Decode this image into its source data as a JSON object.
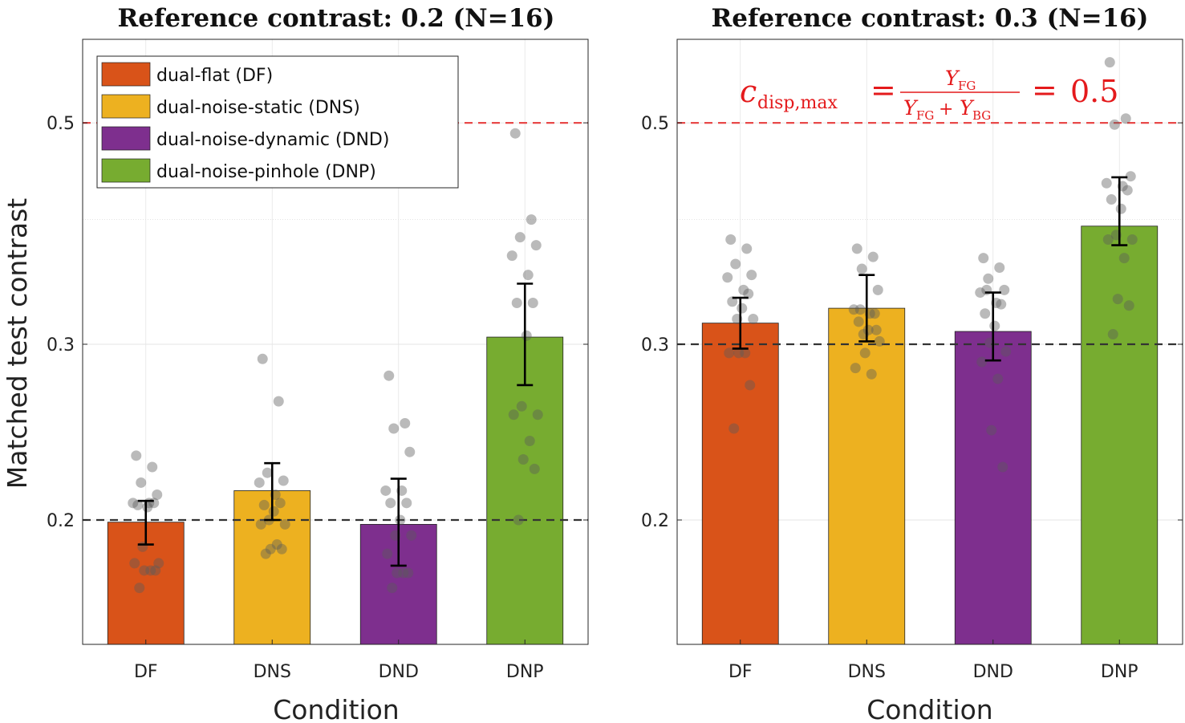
{
  "chart_data": [
    {
      "type": "bar",
      "title": "Reference contrast: 0.2 (N=16)",
      "xlabel": "Condition",
      "ylabel": "Matched test contrast",
      "yscale": "log",
      "ylim": [
        0.15,
        0.62
      ],
      "yticks": [
        "0.2",
        "0.3",
        "0.5"
      ],
      "grid": true,
      "categories": [
        "DF",
        "DNS",
        "DND",
        "DNP"
      ],
      "colors": [
        "#d95319",
        "#edb120",
        "#7e2f8e",
        "#77ac30"
      ],
      "values": [
        0.199,
        0.214,
        0.198,
        0.305
      ],
      "error": [
        [
          0.189,
          0.209
        ],
        [
          0.2,
          0.228
        ],
        [
          0.18,
          0.22
        ],
        [
          0.273,
          0.345
        ]
      ],
      "reference_lines": [
        {
          "y": 0.2,
          "style": "dashed",
          "color": "#333333"
        },
        {
          "y": 0.5,
          "style": "dashed",
          "color": "#e84a4a"
        }
      ],
      "legend": {
        "position": "top-left",
        "entries": [
          "dual-flat (DF)",
          "dual-noise-static (DNS)",
          "dual-noise-dynamic (DND)",
          "dual-noise-pinhole (DNP)"
        ]
      },
      "points": [
        [
          0.232,
          0.226,
          0.218,
          0.212,
          0.208,
          0.208,
          0.208,
          0.207,
          0.206,
          0.188,
          0.181,
          0.181,
          0.178,
          0.178,
          0.178,
          0.171
        ],
        [
          0.29,
          0.263,
          0.223,
          0.219,
          0.218,
          0.212,
          0.208,
          0.207,
          0.204,
          0.2,
          0.198,
          0.198,
          0.189,
          0.187,
          0.187,
          0.185
        ],
        [
          0.279,
          0.25,
          0.247,
          0.234,
          0.214,
          0.214,
          0.208,
          0.208,
          0.2,
          0.193,
          0.193,
          0.185,
          0.177,
          0.177,
          0.177,
          0.171
        ],
        [
          0.488,
          0.4,
          0.384,
          0.377,
          0.368,
          0.352,
          0.33,
          0.33,
          0.306,
          0.26,
          0.255,
          0.255,
          0.24,
          0.23,
          0.225,
          0.2
        ]
      ]
    },
    {
      "type": "bar",
      "title": "Reference contrast: 0.3 (N=16)",
      "xlabel": "Condition",
      "yscale": "log",
      "ylim": [
        0.15,
        0.62
      ],
      "yticks": [
        "0.2",
        "0.3",
        "0.5"
      ],
      "grid": true,
      "categories": [
        "DF",
        "DNS",
        "DND",
        "DNP"
      ],
      "colors": [
        "#d95319",
        "#edb120",
        "#7e2f8e",
        "#77ac30"
      ],
      "values": [
        0.315,
        0.326,
        0.309,
        0.394
      ],
      "error": [
        [
          0.297,
          0.334
        ],
        [
          0.302,
          0.352
        ],
        [
          0.289,
          0.338
        ],
        [
          0.377,
          0.441
        ]
      ],
      "reference_lines": [
        {
          "y": 0.3,
          "style": "dashed",
          "color": "#333333"
        },
        {
          "y": 0.5,
          "style": "dashed",
          "color": "#e84a4a"
        }
      ],
      "annotation": {
        "lhs": "c",
        "lhs_sub": "disp,max",
        "numerator": "Y",
        "numerator_sub": "FG",
        "den_1": "Y",
        "den_1_sub": "FG",
        "den_plus": "+",
        "den_2": "Y",
        "den_2_sub": "BG",
        "equals": "=",
        "value": "0.5",
        "color": "#e41a1c"
      },
      "points": [
        [
          0.382,
          0.374,
          0.361,
          0.352,
          0.35,
          0.34,
          0.337,
          0.331,
          0.326,
          0.318,
          0.318,
          0.294,
          0.294,
          0.294,
          0.273,
          0.247
        ],
        [
          0.374,
          0.367,
          0.357,
          0.34,
          0.325,
          0.322,
          0.322,
          0.316,
          0.31,
          0.307,
          0.302,
          0.284,
          0.28,
          0.294,
          0.31,
          0.325
        ],
        [
          0.366,
          0.358,
          0.349,
          0.34,
          0.338,
          0.33,
          0.329,
          0.322,
          0.313,
          0.301,
          0.295,
          0.288,
          0.277,
          0.246,
          0.226,
          0.34
        ],
        [
          0.575,
          0.505,
          0.498,
          0.442,
          0.435,
          0.432,
          0.428,
          0.419,
          0.41,
          0.386,
          0.382,
          0.382,
          0.366,
          0.333,
          0.328,
          0.307
        ]
      ]
    }
  ]
}
